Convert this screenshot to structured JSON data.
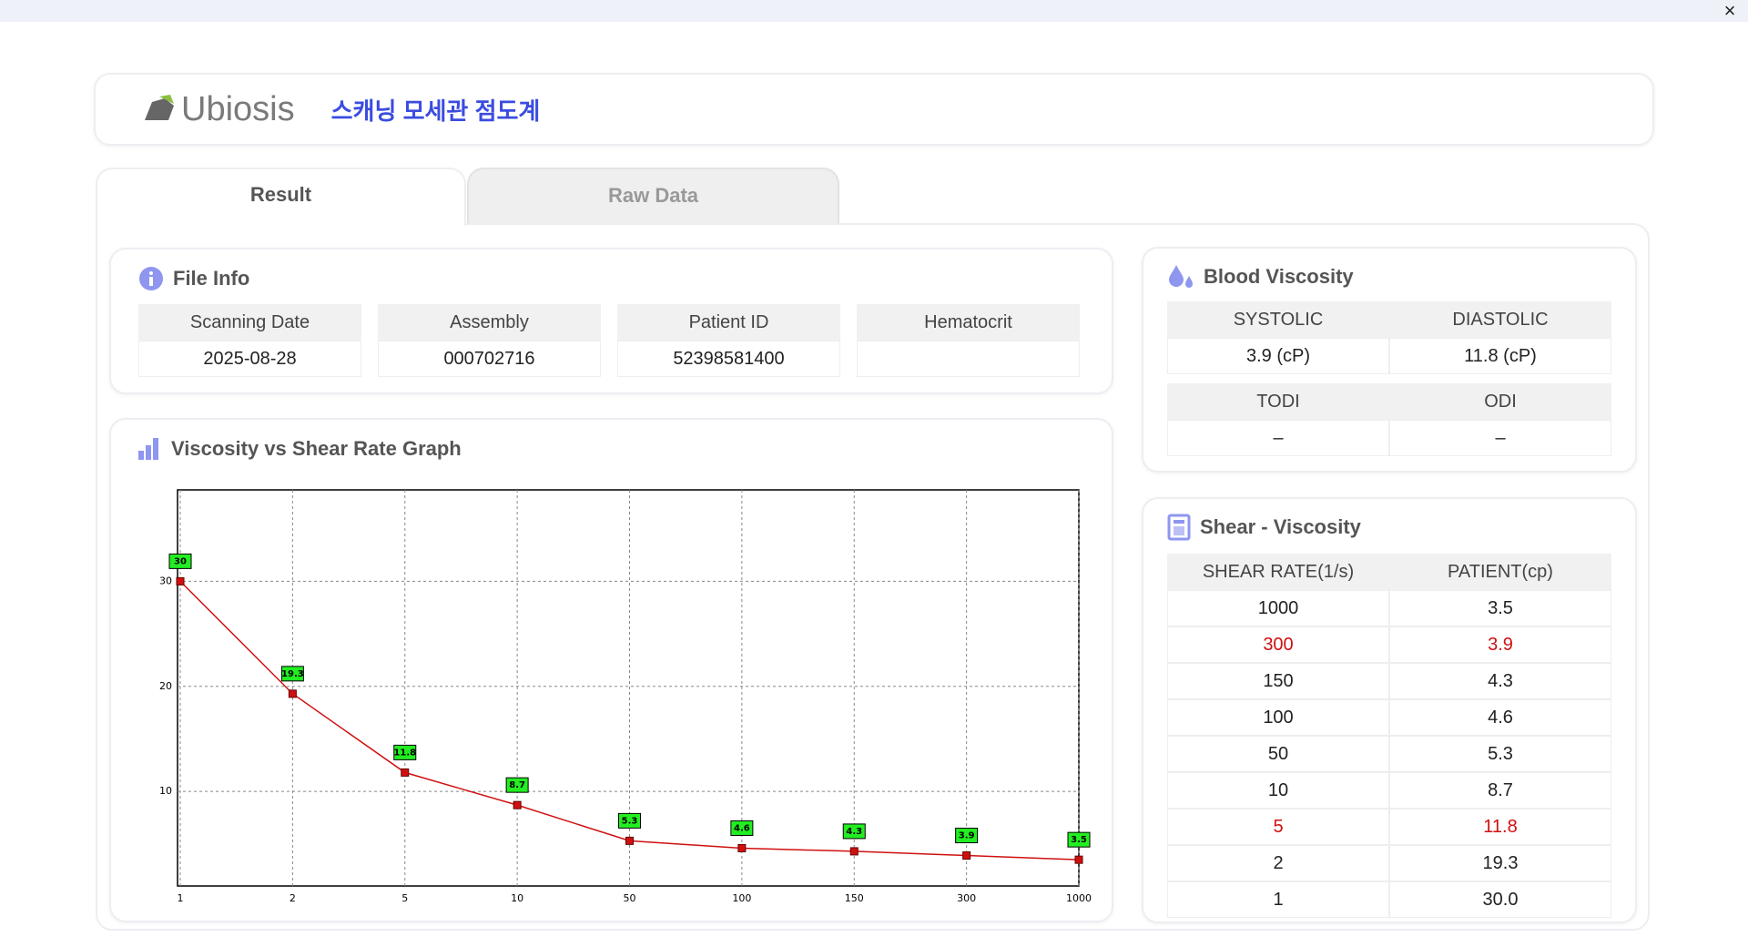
{
  "header": {
    "logo": "Ubiosis",
    "title": "스캐닝 모세관 점도계",
    "close": "×"
  },
  "tabs": [
    "Result",
    "Raw Data"
  ],
  "file_info": {
    "title": "File Info",
    "fields": [
      {
        "label": "Scanning Date",
        "value": "2025-08-28"
      },
      {
        "label": "Assembly",
        "value": "000702716"
      },
      {
        "label": "Patient ID",
        "value": "52398581400"
      },
      {
        "label": "Hematocrit"
      }
    ]
  },
  "blood_viscosity": {
    "title": "Blood Viscosity",
    "rows": [
      [
        {
          "label": "SYSTOLIC",
          "value": "3.9 (cP)"
        },
        {
          "label": "DIASTOLIC",
          "value": "11.8 (cP)"
        }
      ],
      [
        {
          "label": "TODI",
          "value": "–"
        },
        {
          "label": "ODI",
          "value": "–"
        }
      ]
    ]
  },
  "shear_viscosity": {
    "title": "Shear - Viscosity",
    "columns": [
      "SHEAR RATE(1/s)",
      "PATIENT(cp)"
    ],
    "rows": [
      {
        "shear_rate": "1000",
        "patient": "3.5",
        "color": "#222222"
      },
      {
        "shear_rate": "300",
        "patient": "3.9",
        "color": "#d01010"
      },
      {
        "shear_rate": "150",
        "patient": "4.3",
        "color": "#222222"
      },
      {
        "shear_rate": "100",
        "patient": "4.6",
        "color": "#222222"
      },
      {
        "shear_rate": "50",
        "patient": "5.3",
        "color": "#222222"
      },
      {
        "shear_rate": "10",
        "patient": "8.7",
        "color": "#222222"
      },
      {
        "shear_rate": "5",
        "patient": "11.8",
        "color": "#d01010"
      },
      {
        "shear_rate": "2",
        "patient": "19.3",
        "color": "#222222"
      },
      {
        "shear_rate": "1",
        "patient": "30.0",
        "color": "#222222"
      }
    ]
  },
  "chart_data": {
    "type": "line",
    "title": "Viscosity vs Shear Rate Graph",
    "categories": [
      "1",
      "2",
      "5",
      "10",
      "50",
      "100",
      "150",
      "300",
      "1000"
    ],
    "values": [
      30,
      19.3,
      11.8,
      8.7,
      5.3,
      4.6,
      4.3,
      3.9,
      3.5
    ],
    "color": "#d01010",
    "label_color": "#22ee22",
    "ylim": [
      1,
      38.7
    ],
    "yticks": [
      10,
      20,
      30
    ],
    "grid": true
  }
}
